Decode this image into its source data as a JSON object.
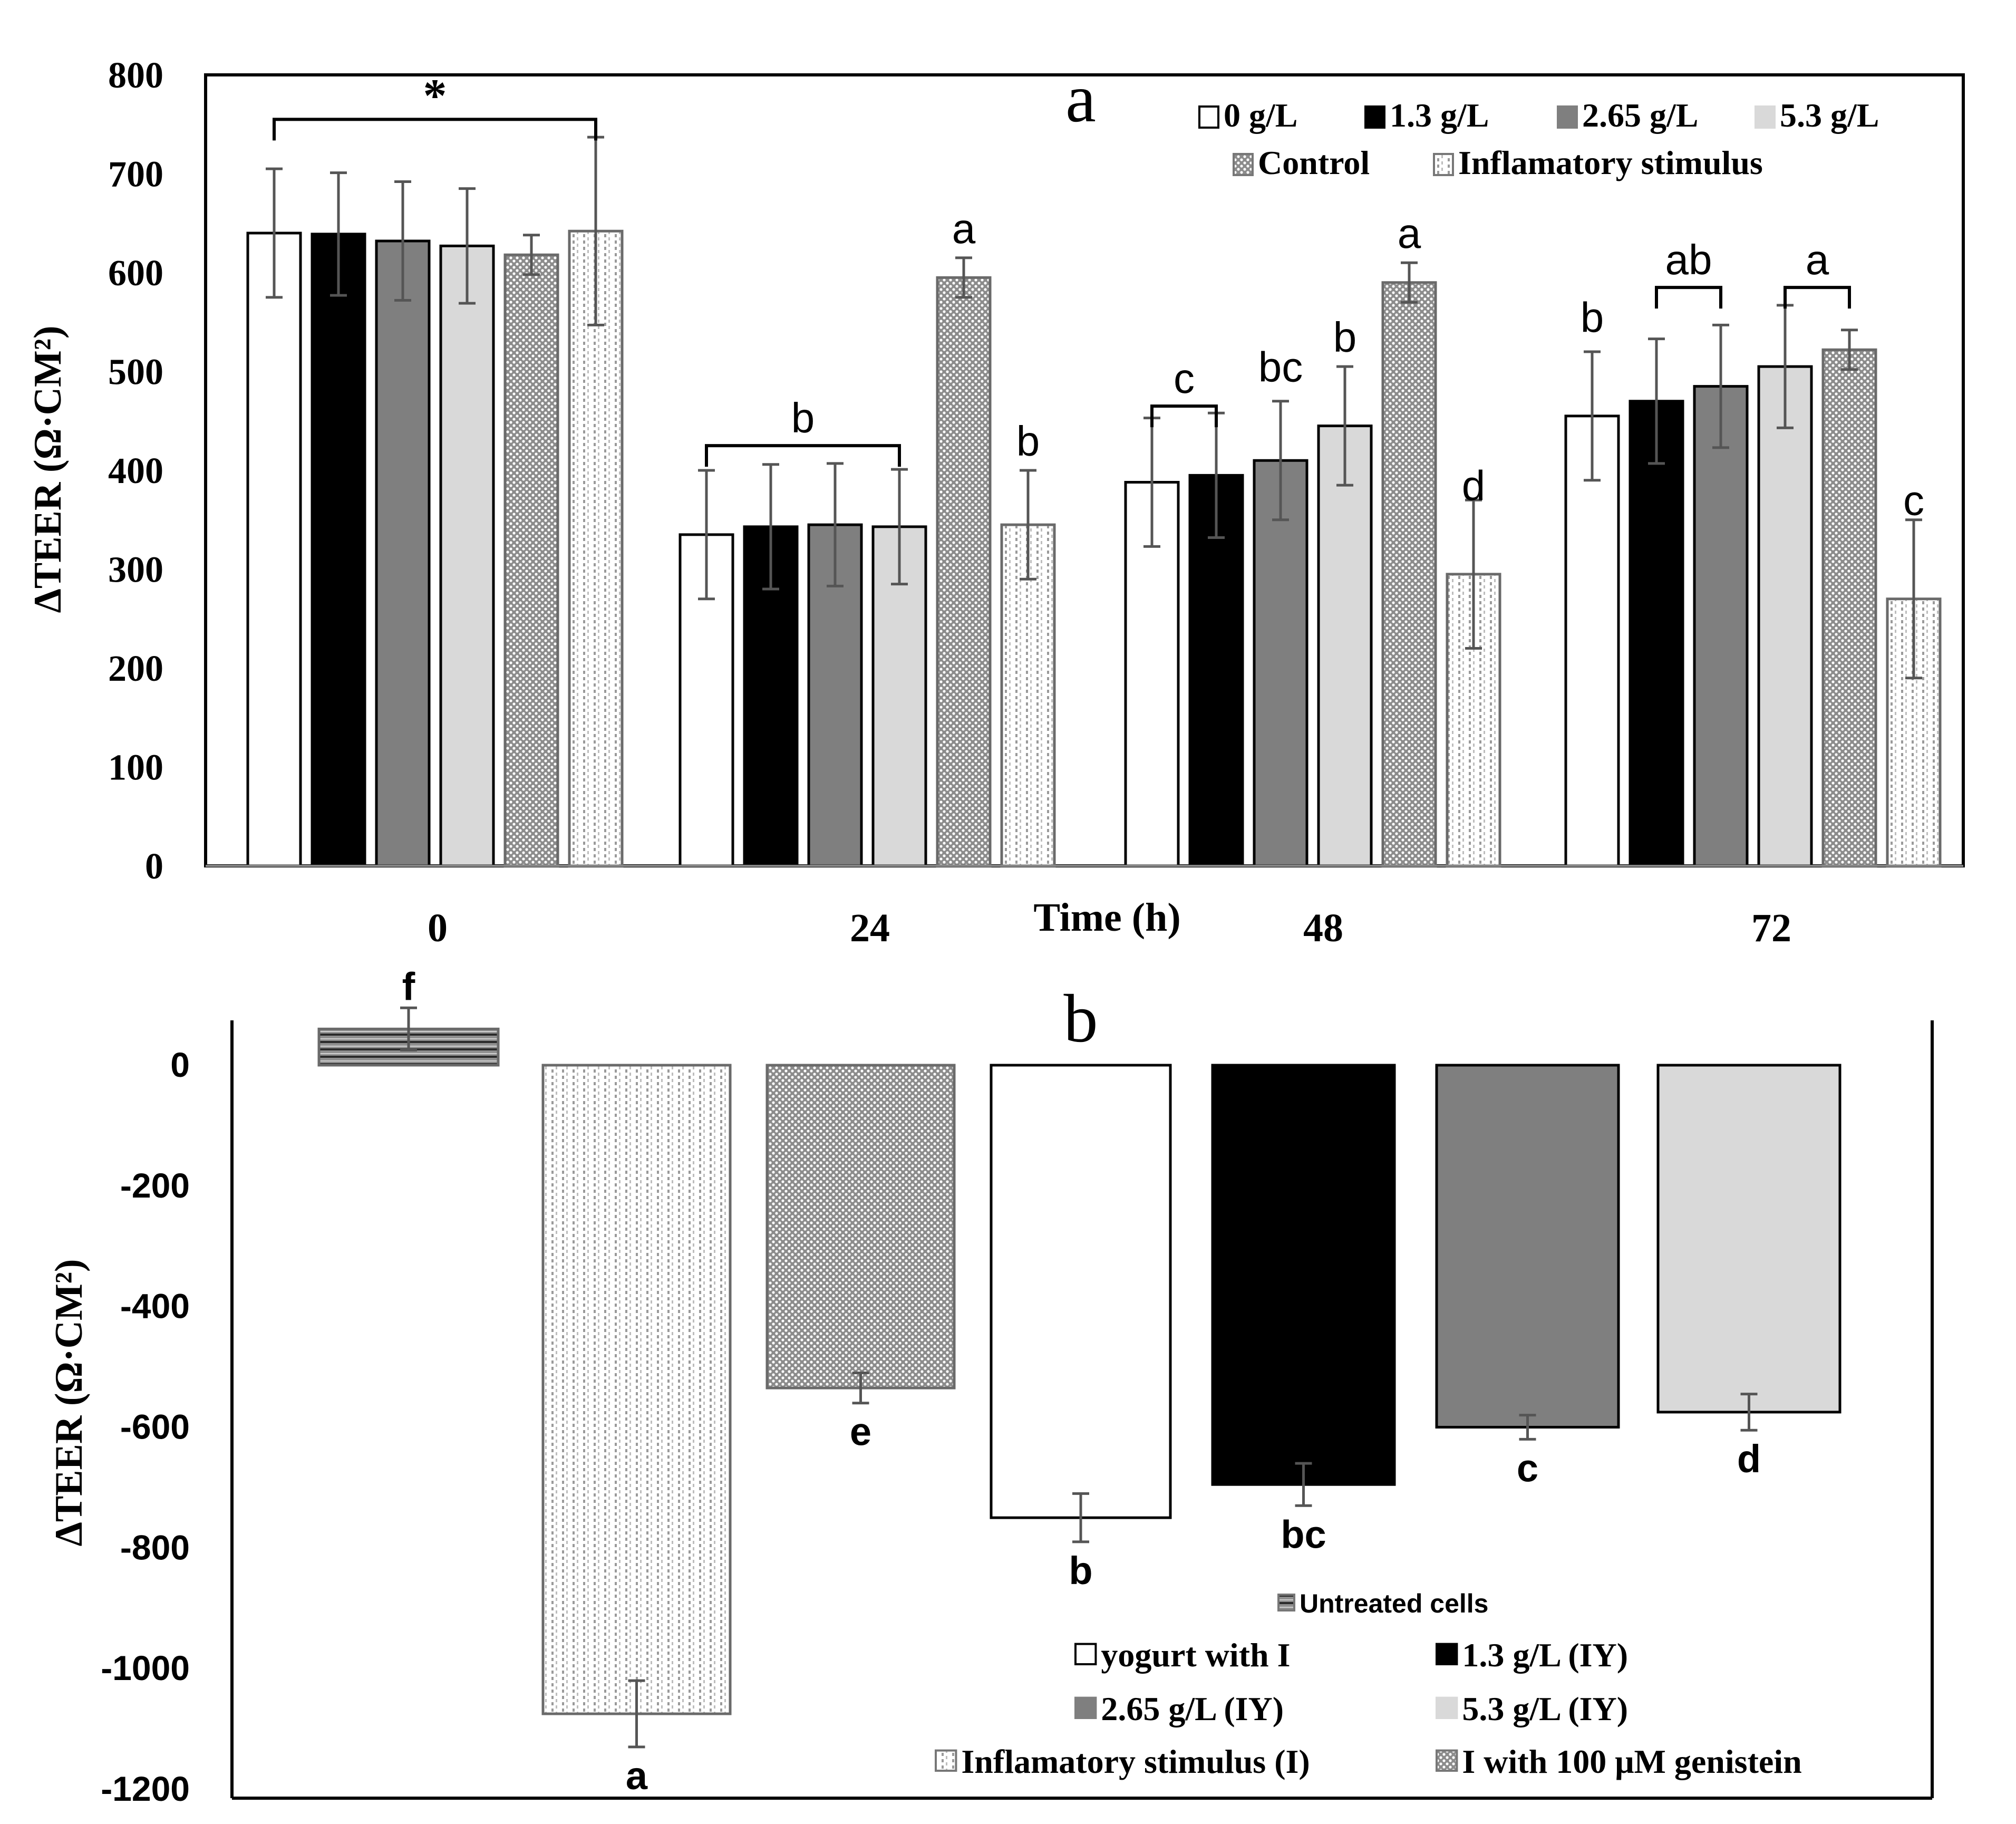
{
  "chart_data": [
    {
      "panel": "a",
      "type": "bar",
      "title": "",
      "panel_label": "a",
      "xlabel": "Time (h)",
      "ylabel": "ΔTEER (Ω·CM²)",
      "ylim": [
        0,
        800
      ],
      "yticks": [
        0,
        100,
        200,
        300,
        400,
        500,
        600,
        700,
        800
      ],
      "categories": [
        "0",
        "24",
        "48",
        "72"
      ],
      "series": [
        {
          "name": "0 g/L",
          "values": [
            640,
            335,
            388,
            455
          ],
          "errors": [
            65,
            65,
            65,
            65
          ],
          "fill": "#ffffff",
          "pattern": "none"
        },
        {
          "name": "1.3 g/L",
          "values": [
            639,
            343,
            395,
            470
          ],
          "errors": [
            62,
            63,
            63,
            63
          ],
          "fill": "#000000",
          "pattern": "none"
        },
        {
          "name": "2.65 g/L",
          "values": [
            632,
            345,
            410,
            485
          ],
          "errors": [
            60,
            62,
            60,
            62
          ],
          "fill": "#7f7f7f",
          "pattern": "none"
        },
        {
          "name": "5.3 g/L",
          "values": [
            627,
            343,
            445,
            505
          ],
          "errors": [
            58,
            58,
            60,
            62
          ],
          "fill": "#d9d9d9",
          "pattern": "none"
        },
        {
          "name": "Control",
          "values": [
            618,
            595,
            590,
            522
          ],
          "errors": [
            20,
            20,
            20,
            20
          ],
          "fill": "#bdbdbd",
          "pattern": "dots"
        },
        {
          "name": "Inflamatory stimulus",
          "values": [
            642,
            345,
            295,
            270
          ],
          "errors": [
            95,
            55,
            75,
            80
          ],
          "fill": "#ffffff",
          "pattern": "vlines"
        }
      ],
      "annotations": [
        {
          "text": "*",
          "bracket": {
            "group": 0,
            "from": 0,
            "to": 5
          },
          "y": 755
        },
        {
          "text": "b",
          "bracket": {
            "group": 1,
            "from": 0,
            "to": 3
          },
          "y": 425
        },
        {
          "text": "a",
          "group": 1,
          "series": 4,
          "y": 630
        },
        {
          "text": "b",
          "group": 1,
          "series": 5,
          "y": 415
        },
        {
          "text": "c",
          "bracket": {
            "group": 2,
            "from": 0,
            "to": 1
          },
          "y": 465
        },
        {
          "text": "bc",
          "group": 2,
          "series": 2,
          "y": 490
        },
        {
          "text": "b",
          "group": 2,
          "series": 3,
          "y": 520
        },
        {
          "text": "a",
          "group": 2,
          "series": 4,
          "y": 625
        },
        {
          "text": "d",
          "group": 2,
          "series": 5,
          "y": 370
        },
        {
          "text": "b",
          "group": 3,
          "series": 0,
          "y": 540
        },
        {
          "text": "ab",
          "bracket": {
            "group": 3,
            "from": 1,
            "to": 2
          },
          "y": 585
        },
        {
          "text": "a",
          "bracket": {
            "group": 3,
            "from": 3,
            "to": 4
          },
          "y": 585
        },
        {
          "text": "c",
          "group": 3,
          "series": 5,
          "y": 355
        }
      ],
      "legend": {
        "position": "top-right"
      }
    },
    {
      "panel": "b",
      "type": "bar",
      "title": "",
      "panel_label": "b",
      "xlabel": "",
      "ylabel": "ΔTEER (Ω·CM²)",
      "ylim": [
        -1200,
        0
      ],
      "yticks": [
        0,
        -200,
        -400,
        -600,
        -800,
        -1000,
        -1200
      ],
      "categories": [
        "Untreated cells",
        "Inflamatory stimulus  (I)",
        "I with 100 μM genistein",
        "yogurt with I",
        "1.3 g/L (IY)",
        "2.65 g/L (IY)",
        "5.3 g/L (IY)"
      ],
      "values": [
        60,
        -1075,
        -535,
        -750,
        -695,
        -600,
        -575
      ],
      "errors": [
        35,
        55,
        25,
        40,
        35,
        20,
        30
      ],
      "letters": [
        "f",
        "a",
        "e",
        "b",
        "bc",
        "c",
        "d"
      ],
      "fills": [
        "#9a9a9a",
        "#ffffff",
        "#a8a8a8",
        "#ffffff",
        "#000000",
        "#7f7f7f",
        "#d9d9d9"
      ],
      "patterns": [
        "hlines",
        "vlines",
        "dots",
        "none",
        "none",
        "none",
        "none"
      ],
      "legend": {
        "position": "bottom-right"
      }
    }
  ]
}
